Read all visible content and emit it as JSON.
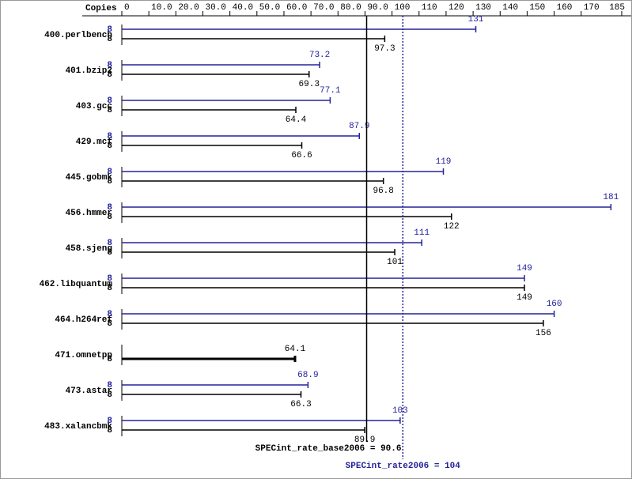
{
  "chart_data": {
    "type": "bar",
    "orientation": "horizontal",
    "copies_label": "Copies",
    "categories": [
      "400.perlbench",
      "401.bzip2",
      "403.gcc",
      "429.mcf",
      "445.gobmk",
      "456.hmmer",
      "458.sjeng",
      "462.libquantum",
      "464.h264ref",
      "471.omnetpp",
      "473.astar",
      "483.xalancbmk"
    ],
    "series": [
      {
        "color": "#23239a",
        "copies": [
          8,
          8,
          8,
          8,
          8,
          8,
          8,
          8,
          8,
          null,
          8,
          8
        ],
        "values": [
          131,
          73.2,
          77.1,
          87.9,
          119,
          181,
          111,
          149,
          160,
          null,
          68.9,
          103
        ]
      },
      {
        "color": "#000000",
        "copies": [
          8,
          8,
          8,
          8,
          8,
          8,
          8,
          8,
          8,
          8,
          8,
          8
        ],
        "values": [
          97.3,
          69.3,
          64.4,
          66.6,
          96.8,
          122,
          101,
          149,
          156,
          64.1,
          66.3,
          89.9
        ]
      }
    ],
    "xlim": [
      0,
      185
    ],
    "xticks": [
      0,
      {
        "value": 10,
        "label": "10.0"
      },
      {
        "value": 20,
        "label": "20.0"
      },
      {
        "value": 30,
        "label": "30.0"
      },
      {
        "value": 40,
        "label": "40.0"
      },
      {
        "value": 50,
        "label": "50.0"
      },
      {
        "value": 60,
        "label": "60.0"
      },
      {
        "value": 70,
        "label": "70.0"
      },
      {
        "value": 80,
        "label": "80.0"
      },
      {
        "value": 90,
        "label": "90.0"
      },
      100,
      110,
      120,
      130,
      140,
      150,
      160,
      170,
      185
    ],
    "reference_lines": [
      {
        "value": 90.6,
        "label": "SPECint_rate_base2006 = 90.6",
        "color": "#000000",
        "style": "solid"
      },
      {
        "value": 104,
        "label": "SPECint_rate2006 = 104",
        "color": "#23239a",
        "style": "dotted"
      }
    ]
  }
}
